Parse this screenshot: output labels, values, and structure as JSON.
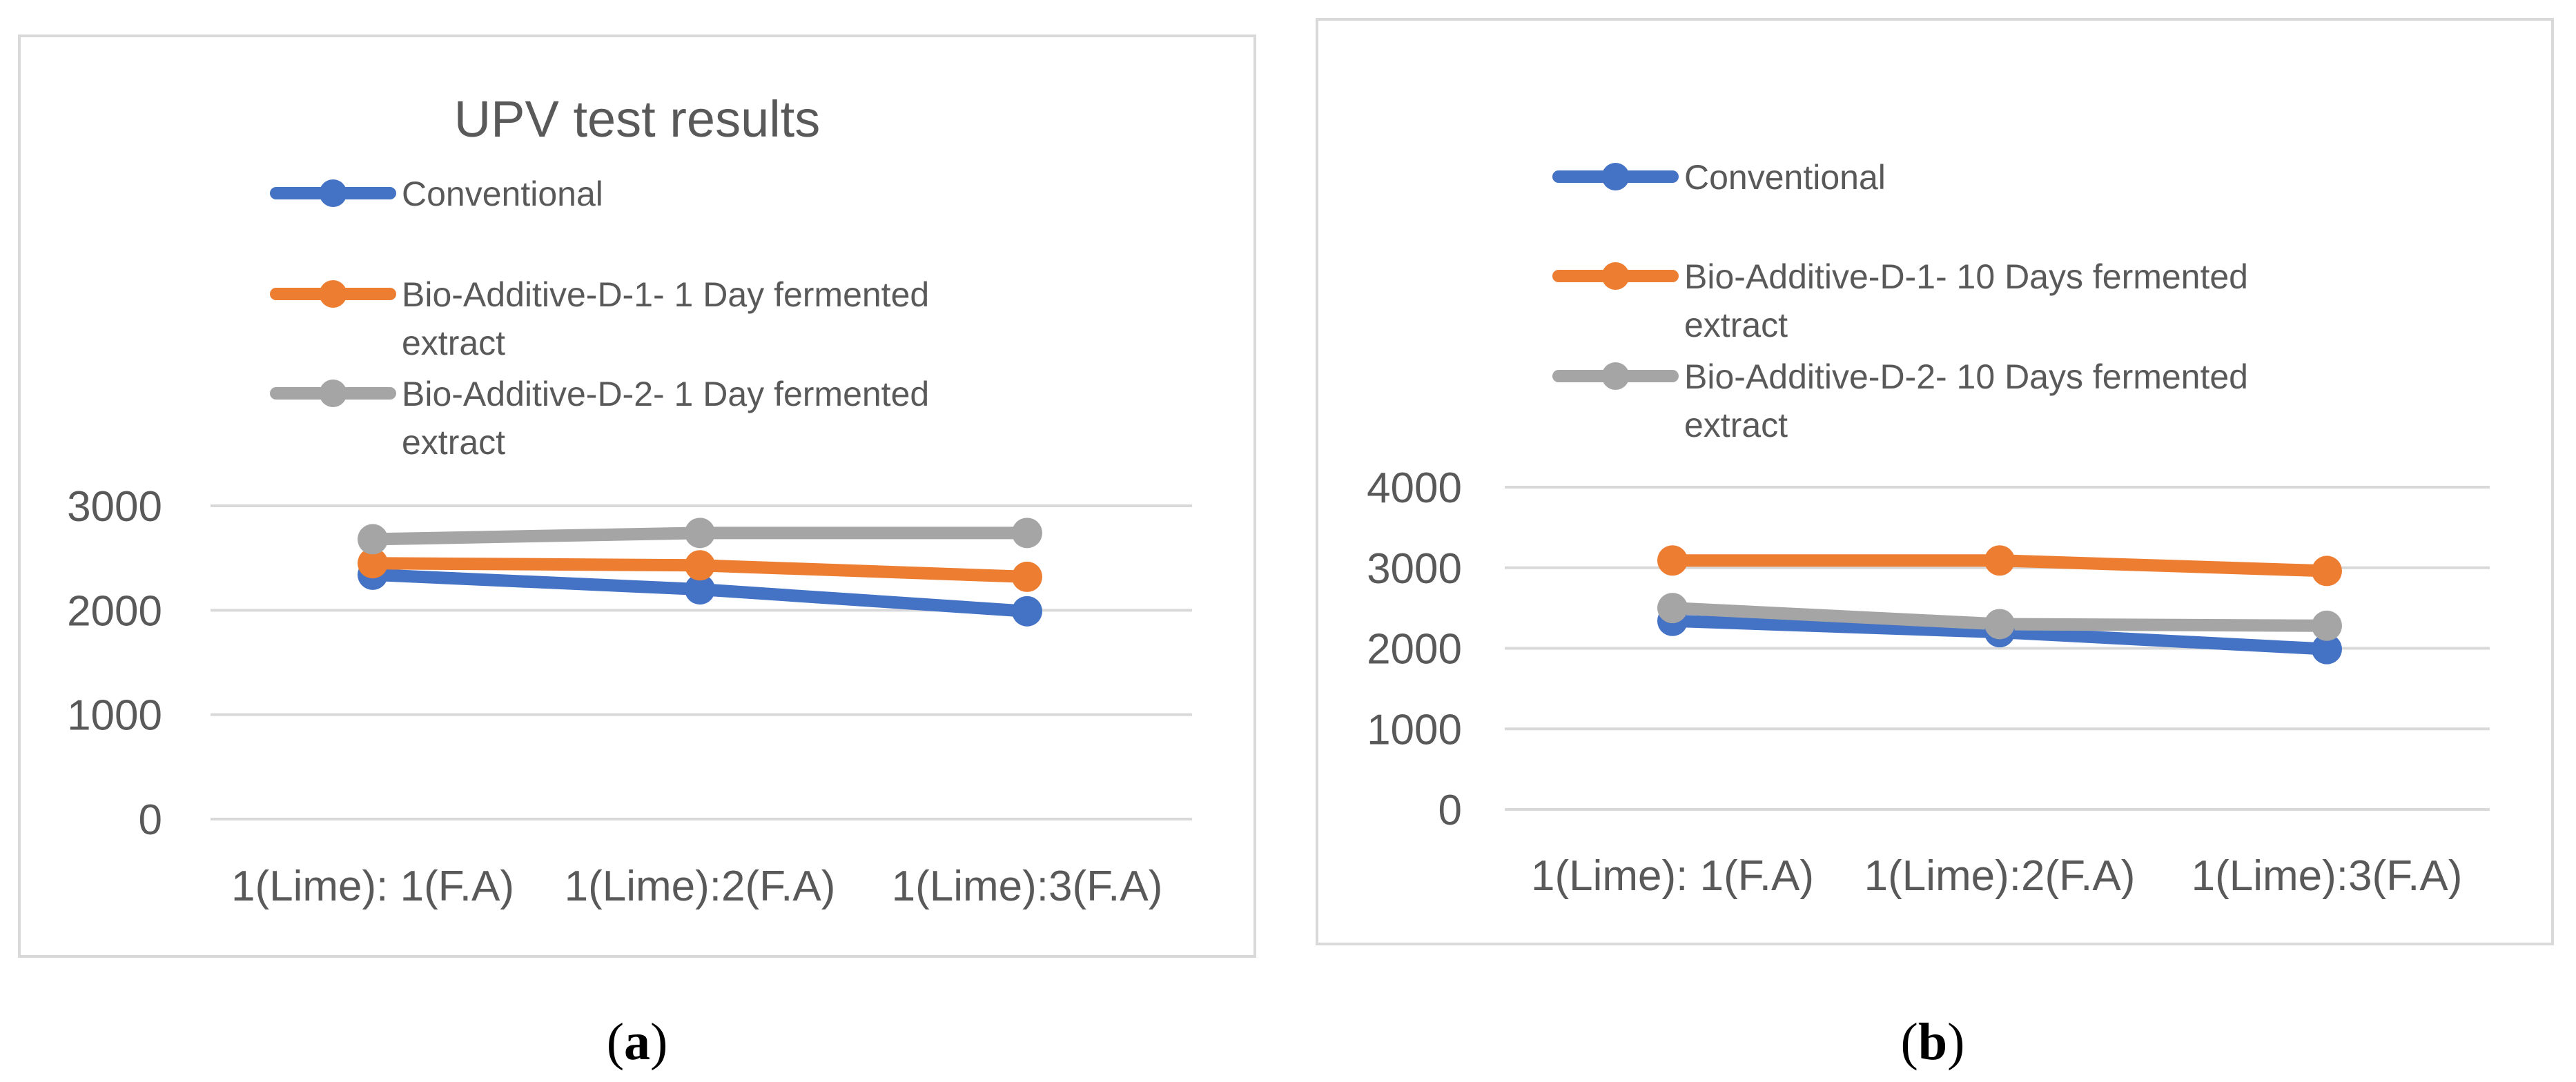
{
  "colors": {
    "conventional": "#4472C4",
    "bio_d1": "#ED7D31",
    "bio_d2": "#A5A5A5",
    "gridline": "#D9D9D9",
    "frame": "#D9D9D9",
    "text": "#595959"
  },
  "chart_data": [
    {
      "type": "line",
      "title": "UPV test results",
      "panel_label": "a",
      "categories": [
        "1(Lime): 1(F.A)",
        "1(Lime):2(F.A)",
        "1(Lime):3(F.A)"
      ],
      "series": [
        {
          "name": "Conventional",
          "color_key": "conventional",
          "values": [
            2340,
            2200,
            1990
          ]
        },
        {
          "name": "Bio-Additive-D-1- 1 Day fermented extract",
          "legend_lines": [
            "Bio-Additive-D-1- 1 Day fermented",
            "extract"
          ],
          "color_key": "bio_d1",
          "values": [
            2450,
            2430,
            2320
          ]
        },
        {
          "name": "Bio-Additive-D-2- 1 Day fermented extract",
          "legend_lines": [
            "Bio-Additive-D-2- 1 Day fermented",
            "extract"
          ],
          "color_key": "bio_d2",
          "values": [
            2680,
            2740,
            2740
          ]
        }
      ],
      "yticks": [
        0,
        1000,
        2000,
        3000
      ],
      "ylim": [
        0,
        3000
      ],
      "xlabel": "",
      "ylabel": "",
      "grid": true,
      "legend_position": "top"
    },
    {
      "type": "line",
      "title": "",
      "panel_label": "b",
      "categories": [
        "1(Lime): 1(F.A)",
        "1(Lime):2(F.A)",
        "1(Lime):3(F.A)"
      ],
      "series": [
        {
          "name": "Conventional",
          "color_key": "conventional",
          "values": [
            2340,
            2200,
            1990
          ]
        },
        {
          "name": "Bio-Additive-D-1- 10 Days fermented extract",
          "legend_lines": [
            "Bio-Additive-D-1- 10 Days fermented",
            "extract"
          ],
          "color_key": "bio_d1",
          "values": [
            3090,
            3090,
            2960
          ]
        },
        {
          "name": "Bio-Additive-D-2- 10 Days fermented extract",
          "legend_lines": [
            "Bio-Additive-D-2- 10 Days fermented",
            "extract"
          ],
          "color_key": "bio_d2",
          "values": [
            2500,
            2300,
            2280
          ]
        }
      ],
      "yticks": [
        0,
        1000,
        2000,
        3000,
        4000
      ],
      "ylim": [
        0,
        4000
      ],
      "xlabel": "",
      "ylabel": "",
      "grid": true,
      "legend_position": "top"
    }
  ]
}
